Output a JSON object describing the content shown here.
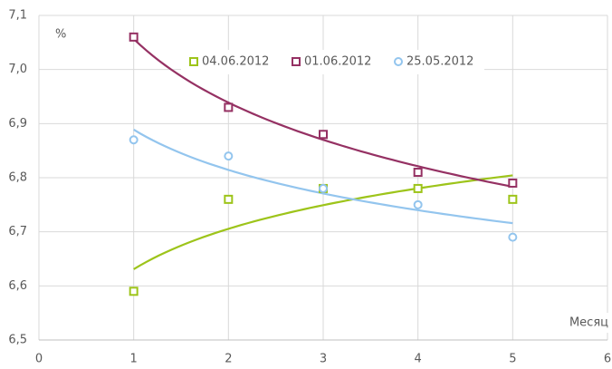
{
  "chart_data": {
    "type": "scatter",
    "y_label": "%",
    "x_label": "Месяц",
    "x": [
      1,
      2,
      3,
      4,
      5
    ],
    "series": [
      {
        "name": "04.06.2012",
        "color": "#9dc41a",
        "marker": "square",
        "trendline": "logarithmic",
        "values": [
          6.59,
          6.76,
          6.78,
          6.78,
          6.76
        ]
      },
      {
        "name": "01.06.2012",
        "color": "#953163",
        "marker": "square",
        "trendline": "logarithmic",
        "values": [
          7.06,
          6.93,
          6.88,
          6.81,
          6.79
        ]
      },
      {
        "name": "25.05.2012",
        "color": "#93c5ee",
        "marker": "circle",
        "trendline": "logarithmic",
        "values": [
          6.87,
          6.84,
          6.78,
          6.75,
          6.69
        ]
      }
    ],
    "xlim": [
      0,
      6
    ],
    "xticks": [
      0,
      1,
      2,
      3,
      4,
      5,
      6
    ],
    "ylim": [
      6.5,
      7.1
    ],
    "yticks": [
      {
        "value": 6.5,
        "label": "6,5"
      },
      {
        "value": 6.6,
        "label": "6,6"
      },
      {
        "value": 6.7,
        "label": "6,7"
      },
      {
        "value": 6.8,
        "label": "6,8"
      },
      {
        "value": 6.9,
        "label": "6,9"
      },
      {
        "value": 7.0,
        "label": "7,0"
      },
      {
        "value": 7.1,
        "label": "7,1"
      }
    ],
    "grid": true,
    "legend": "top"
  }
}
